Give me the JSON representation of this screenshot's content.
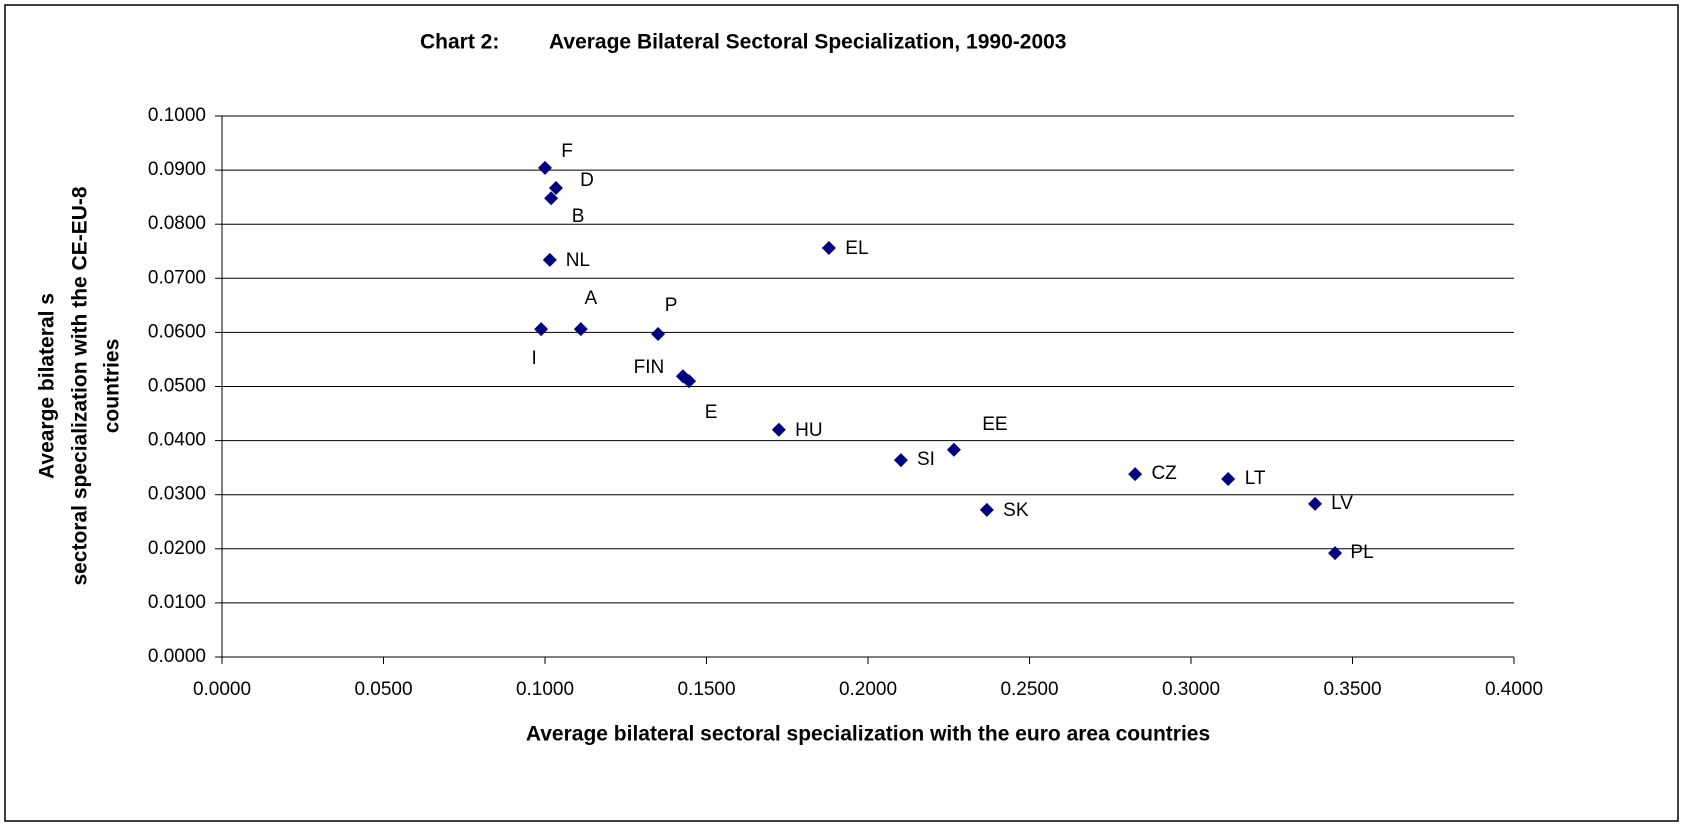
{
  "chart_data": {
    "type": "scatter",
    "title_prefix": "Chart 2:",
    "title": "Average Bilateral Sectoral Specialization, 1990-2003",
    "xlabel": "Average bilateral sectoral specialization with the euro area countries",
    "ylabel": [
      "Avearge bilateral s",
      "sectoral specialization with the CE-EU-8",
      "countries"
    ],
    "color": "#000080",
    "point_labels": [
      "F",
      "D",
      "B",
      "NL",
      "A",
      "I",
      "P",
      "FIN",
      "E",
      "EL",
      "HU",
      "SI",
      "EE",
      "SK",
      "CZ",
      "LT",
      "LV",
      "PL"
    ],
    "x": [
      0.1,
      0.1034,
      0.1019,
      0.1015,
      0.1111,
      0.0988,
      0.135,
      0.1427,
      0.1446,
      0.1879,
      0.1724,
      0.2102,
      0.2266,
      0.2368,
      0.2827,
      0.3115,
      0.3384,
      0.3446
    ],
    "values": [
      0.0904,
      0.0867,
      0.0848,
      0.0734,
      0.0606,
      0.0606,
      0.0597,
      0.0519,
      0.051,
      0.0756,
      0.042,
      0.0364,
      0.0383,
      0.0272,
      0.0338,
      0.0329,
      0.0283,
      0.0192
    ],
    "xlim": [
      0,
      0.4
    ],
    "ylim": [
      0,
      0.1
    ],
    "xticks": [
      {
        "value": 0,
        "label": "0.0000"
      },
      {
        "value": 0.05,
        "label": "0.0500"
      },
      {
        "value": 0.1,
        "label": "0.1000"
      },
      {
        "value": 0.15,
        "label": "0.1500"
      },
      {
        "value": 0.2,
        "label": "0.2000"
      },
      {
        "value": 0.25,
        "label": "0.2500"
      },
      {
        "value": 0.3,
        "label": "0.3000"
      },
      {
        "value": 0.35,
        "label": "0.3500"
      },
      {
        "value": 0.4,
        "label": "0.4000"
      }
    ],
    "yticks": [
      {
        "value": 0,
        "label": "0.0000"
      },
      {
        "value": 0.01,
        "label": "0.0100"
      },
      {
        "value": 0.02,
        "label": "0.0200"
      },
      {
        "value": 0.03,
        "label": "0.0300"
      },
      {
        "value": 0.04,
        "label": "0.0400"
      },
      {
        "value": 0.05,
        "label": "0.0500"
      },
      {
        "value": 0.06,
        "label": "0.0600"
      },
      {
        "value": 0.07,
        "label": "0.0700"
      },
      {
        "value": 0.08,
        "label": "0.0800"
      },
      {
        "value": 0.09,
        "label": "0.0900"
      },
      {
        "value": 0.1,
        "label": "0.1000"
      }
    ],
    "grid": true
  }
}
